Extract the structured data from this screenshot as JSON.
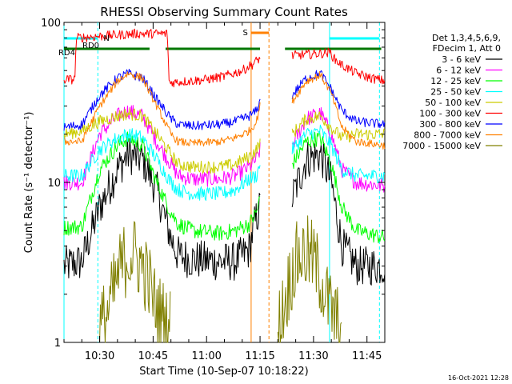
{
  "chart_data": {
    "type": "line",
    "title": "RHESSI Observing Summary Count Rates",
    "xlabel": "Start Time (10-Sep-07 10:18:22)",
    "ylabel": "Count Rate (s⁻¹ detector⁻¹)",
    "ylog": true,
    "ylim": [
      1,
      100
    ],
    "xlim_minutes": [
      20,
      110
    ],
    "x_ticks": [
      {
        "label": "10:30",
        "minute": 30
      },
      {
        "label": "10:45",
        "minute": 45
      },
      {
        "label": "11:00",
        "minute": 60
      },
      {
        "label": "11:15",
        "minute": 75
      },
      {
        "label": "11:30",
        "minute": 90
      },
      {
        "label": "11:45",
        "minute": 105
      }
    ],
    "y_ticks": [
      {
        "label": "1",
        "value": 1
      },
      {
        "label": "10",
        "value": 10
      },
      {
        "label": "100",
        "value": 100
      }
    ],
    "legend": {
      "position": "top-right",
      "header": [
        "Det 1,3,4,5,6,9,",
        "FDecim 1, Att 0"
      ],
      "entries": [
        {
          "label": "3 - 6 keV",
          "color": "#000000"
        },
        {
          "label": "6 - 12 keV",
          "color": "#ff00ff"
        },
        {
          "label": "12 - 25 keV",
          "color": "#00ff00"
        },
        {
          "label": "25 - 50 keV",
          "color": "#00ffff"
        },
        {
          "label": "50 - 100 keV",
          "color": "#cccc00"
        },
        {
          "label": "100 - 300 keV",
          "color": "#ff0000"
        },
        {
          "label": "300 - 800 keV",
          "color": "#0000ff"
        },
        {
          "label": "800 - 7000 keV",
          "color": "#ff8000"
        },
        {
          "label": "7000 - 15000 keV",
          "color": "#808000"
        }
      ]
    },
    "series": [
      {
        "name": "3 - 6 keV",
        "color": "#000000",
        "noise": 0.25,
        "points": [
          [
            20,
            3.0
          ],
          [
            25,
            3.2
          ],
          [
            30,
            7
          ],
          [
            35,
            12
          ],
          [
            38,
            15
          ],
          [
            42,
            14
          ],
          [
            46,
            9
          ],
          [
            50,
            4.5
          ],
          [
            52,
            3.5
          ],
          [
            56,
            3.3
          ],
          [
            64,
            3.2
          ],
          [
            68,
            3.2
          ],
          [
            72,
            3.8
          ],
          [
            73,
            5
          ],
          [
            74,
            6
          ],
          [
            75,
            7
          ],
          null,
          [
            84,
            8
          ],
          [
            88,
            14
          ],
          [
            92,
            15
          ],
          [
            95,
            10
          ],
          [
            98,
            4
          ],
          [
            102,
            3.0
          ],
          [
            110,
            3.0
          ]
        ]
      },
      {
        "name": "6 - 12 keV",
        "color": "#ff00ff",
        "noise": 0.1,
        "points": [
          [
            20,
            10
          ],
          [
            25,
            10
          ],
          [
            30,
            20
          ],
          [
            35,
            26
          ],
          [
            38,
            28
          ],
          [
            42,
            26
          ],
          [
            46,
            18
          ],
          [
            50,
            13
          ],
          [
            52,
            11
          ],
          [
            56,
            10.5
          ],
          [
            64,
            10.5
          ],
          [
            68,
            11
          ],
          [
            72,
            12.5
          ],
          [
            74,
            14
          ],
          [
            75,
            16
          ],
          null,
          [
            84,
            17
          ],
          [
            88,
            25
          ],
          [
            92,
            27
          ],
          [
            95,
            20
          ],
          [
            98,
            12
          ],
          [
            102,
            10
          ],
          [
            110,
            9.5
          ]
        ]
      },
      {
        "name": "12 - 25 keV",
        "color": "#00ff00",
        "noise": 0.1,
        "points": [
          [
            20,
            5.2
          ],
          [
            25,
            5.3
          ],
          [
            30,
            12
          ],
          [
            35,
            17
          ],
          [
            38,
            19
          ],
          [
            42,
            17
          ],
          [
            46,
            10
          ],
          [
            50,
            6.5
          ],
          [
            52,
            5.5
          ],
          [
            56,
            5.0
          ],
          [
            64,
            4.8
          ],
          [
            68,
            5.0
          ],
          [
            72,
            5.5
          ],
          [
            74,
            6.5
          ],
          [
            75,
            8
          ],
          null,
          [
            84,
            13
          ],
          [
            88,
            18
          ],
          [
            92,
            19
          ],
          [
            95,
            13
          ],
          [
            98,
            7
          ],
          [
            102,
            5.0
          ],
          [
            110,
            4.5
          ]
        ]
      },
      {
        "name": "25 - 50 keV",
        "color": "#00ffff",
        "noise": 0.09,
        "points": [
          [
            20,
            11
          ],
          [
            25,
            11
          ],
          [
            30,
            16
          ],
          [
            35,
            19
          ],
          [
            38,
            20
          ],
          [
            42,
            19
          ],
          [
            46,
            14
          ],
          [
            50,
            10
          ],
          [
            52,
            9
          ],
          [
            56,
            8.5
          ],
          [
            64,
            8.5
          ],
          [
            68,
            9
          ],
          [
            72,
            10.5
          ],
          [
            74,
            11
          ],
          [
            75,
            13
          ],
          null,
          [
            84,
            16
          ],
          [
            88,
            20
          ],
          [
            92,
            21
          ],
          [
            95,
            17
          ],
          [
            98,
            12
          ],
          [
            102,
            11
          ],
          [
            110,
            11
          ]
        ]
      },
      {
        "name": "50 - 100 keV",
        "color": "#cccc00",
        "noise": 0.08,
        "points": [
          [
            20,
            20
          ],
          [
            25,
            21
          ],
          [
            30,
            24
          ],
          [
            35,
            26
          ],
          [
            38,
            27
          ],
          [
            42,
            26
          ],
          [
            46,
            20
          ],
          [
            50,
            15
          ],
          [
            52,
            13
          ],
          [
            56,
            12.5
          ],
          [
            64,
            12.5
          ],
          [
            68,
            13
          ],
          [
            72,
            14.5
          ],
          [
            74,
            16
          ],
          [
            75,
            18
          ],
          null,
          [
            84,
            20
          ],
          [
            88,
            25
          ],
          [
            92,
            26
          ],
          [
            95,
            22
          ],
          [
            98,
            19
          ],
          [
            102,
            20
          ],
          [
            110,
            20
          ]
        ]
      },
      {
        "name": "100 - 300 keV",
        "color": "#ff0000",
        "noise": 0.06,
        "points": [
          [
            20,
            44
          ],
          [
            23,
            44
          ],
          [
            23.5,
            80
          ],
          [
            30,
            82
          ],
          [
            40,
            85
          ],
          [
            49,
            85
          ],
          [
            49.5,
            42
          ],
          [
            55,
            43
          ],
          [
            60,
            44
          ],
          [
            65,
            46
          ],
          [
            70,
            50
          ],
          [
            73,
            55
          ],
          [
            75,
            60
          ],
          null,
          [
            84,
            62
          ],
          [
            92,
            64
          ],
          [
            95,
            65
          ],
          [
            95.5,
            60
          ],
          [
            98,
            54
          ],
          [
            102,
            48
          ],
          [
            106,
            45
          ],
          [
            110,
            43
          ]
        ]
      },
      {
        "name": "300 - 800 keV",
        "color": "#0000ff",
        "noise": 0.06,
        "points": [
          [
            20,
            22
          ],
          [
            25,
            23
          ],
          [
            30,
            35
          ],
          [
            35,
            45
          ],
          [
            38,
            48
          ],
          [
            42,
            45
          ],
          [
            46,
            33
          ],
          [
            50,
            25
          ],
          [
            52,
            23
          ],
          [
            56,
            22.5
          ],
          [
            64,
            23
          ],
          [
            68,
            24
          ],
          [
            72,
            26
          ],
          [
            74,
            28
          ],
          [
            75,
            32
          ],
          null,
          [
            84,
            35
          ],
          [
            88,
            45
          ],
          [
            92,
            48
          ],
          [
            95,
            38
          ],
          [
            98,
            28
          ],
          [
            102,
            24
          ],
          [
            110,
            23
          ]
        ]
      },
      {
        "name": "800 - 7000 keV",
        "color": "#ff8000",
        "noise": 0.05,
        "points": [
          [
            20,
            18
          ],
          [
            25,
            18
          ],
          [
            30,
            30
          ],
          [
            35,
            43
          ],
          [
            38,
            48
          ],
          [
            42,
            45
          ],
          [
            46,
            30
          ],
          [
            50,
            20
          ],
          [
            52,
            18
          ],
          [
            56,
            17.5
          ],
          [
            64,
            18
          ],
          [
            68,
            19
          ],
          [
            72,
            21
          ],
          [
            74,
            24
          ],
          [
            75,
            30
          ],
          null,
          [
            84,
            32
          ],
          [
            88,
            43
          ],
          [
            92,
            47
          ],
          [
            95,
            36
          ],
          [
            98,
            22
          ],
          [
            102,
            18
          ],
          [
            110,
            17
          ]
        ]
      },
      {
        "name": "7000 - 15000 keV",
        "color": "#808000",
        "noise": 0.45,
        "points": [
          [
            30,
            1.2
          ],
          [
            32,
            1.5
          ],
          [
            34,
            2.1
          ],
          [
            36,
            3.0
          ],
          [
            38,
            3.5
          ],
          [
            40,
            3.5
          ],
          [
            42,
            3.0
          ],
          [
            44,
            2.3
          ],
          [
            46,
            1.6
          ],
          [
            48,
            1.4
          ],
          [
            50,
            1.3
          ],
          null,
          [
            80,
            1.2
          ],
          [
            82,
            1.8
          ],
          [
            84,
            2.8
          ],
          [
            86,
            3.5
          ],
          [
            88,
            3.6
          ],
          [
            90,
            3.3
          ],
          [
            92,
            2.5
          ],
          [
            94,
            1.8
          ],
          [
            96,
            1.4
          ],
          [
            98,
            1.2
          ]
        ]
      }
    ],
    "annotations": {
      "markers": [
        {
          "label": "N",
          "color": "#00ffff"
        },
        {
          "label": "RD0",
          "color": "#000000"
        },
        {
          "label": "RD4",
          "color": "#007700"
        },
        {
          "label": "S",
          "color": "#ff8000"
        }
      ],
      "night_bars": [
        [
          20,
          29.5
        ],
        [
          94.5,
          108.5
        ]
      ],
      "saa_bar": [
        72.5,
        77.5
      ],
      "rd_bars": [
        [
          20,
          44
        ],
        [
          48.5,
          75
        ],
        [
          82,
          109
        ]
      ],
      "cyan_lines": [
        {
          "minute": 20,
          "style": "solid"
        },
        {
          "minute": 29.5,
          "style": "dashed"
        },
        {
          "minute": 94.5,
          "style": "solid"
        },
        {
          "minute": 108.5,
          "style": "dashed"
        }
      ],
      "orange_lines": [
        {
          "minute": 72.5,
          "style": "solid"
        },
        {
          "minute": 77.5,
          "style": "dashed"
        }
      ]
    }
  },
  "footer": {
    "timestamp": "16-Oct-2021 12:28"
  }
}
